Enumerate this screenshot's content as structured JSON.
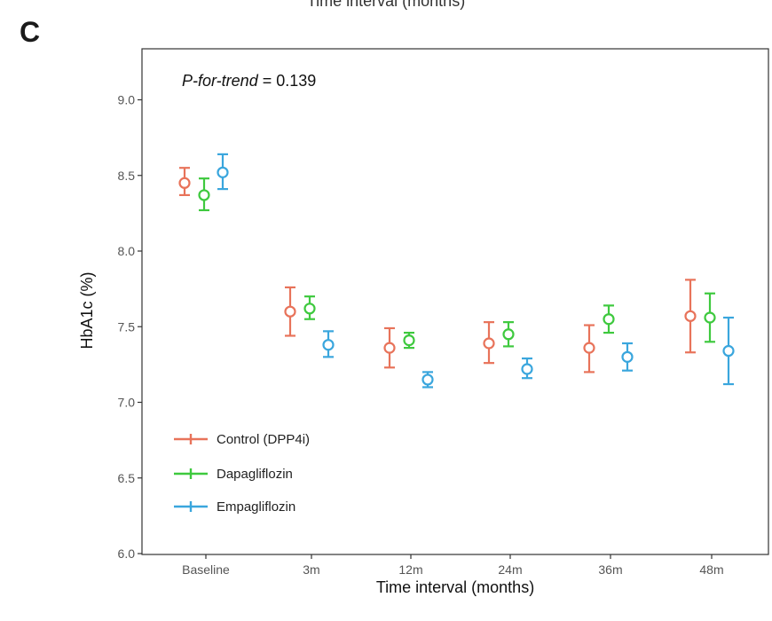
{
  "header": {
    "caption": "Time interval (months)",
    "panel_letter": "C"
  },
  "chart_data": {
    "type": "scatter",
    "subtype": "point-with-error-bars",
    "title": "",
    "annotation": {
      "italic": "P-for-trend",
      "rest": " = 0.139"
    },
    "xlabel": "Time interval (months)",
    "ylabel": "HbA1c (%)",
    "ylim": [
      6.0,
      9.0
    ],
    "yticks": [
      "6.0",
      "6.5",
      "7.0",
      "7.5",
      "8.0",
      "8.5",
      "9.0"
    ],
    "categories": [
      "Baseline",
      "3m",
      "12m",
      "24m",
      "36m",
      "48m"
    ],
    "legend_position": "bottom-left",
    "grid": false,
    "series": [
      {
        "name": "Control (DPP4i)",
        "color": "#e8735a",
        "values": [
          8.45,
          7.6,
          7.36,
          7.39,
          7.36,
          7.57
        ],
        "lower": [
          8.37,
          7.44,
          7.23,
          7.26,
          7.2,
          7.33
        ],
        "upper": [
          8.55,
          7.76,
          7.49,
          7.53,
          7.51,
          7.81
        ]
      },
      {
        "name": "Dapagliflozin",
        "color": "#3ec93e",
        "values": [
          8.37,
          7.62,
          7.41,
          7.45,
          7.55,
          7.56
        ],
        "lower": [
          8.27,
          7.55,
          7.36,
          7.37,
          7.46,
          7.4
        ],
        "upper": [
          8.48,
          7.7,
          7.46,
          7.53,
          7.64,
          7.72
        ]
      },
      {
        "name": "Empagliflozin",
        "color": "#3aa6dd",
        "values": [
          8.52,
          7.38,
          7.15,
          7.22,
          7.3,
          7.34
        ],
        "lower": [
          8.41,
          7.3,
          7.1,
          7.16,
          7.21,
          7.12
        ],
        "upper": [
          8.64,
          7.47,
          7.2,
          7.29,
          7.39,
          7.56
        ]
      }
    ]
  }
}
